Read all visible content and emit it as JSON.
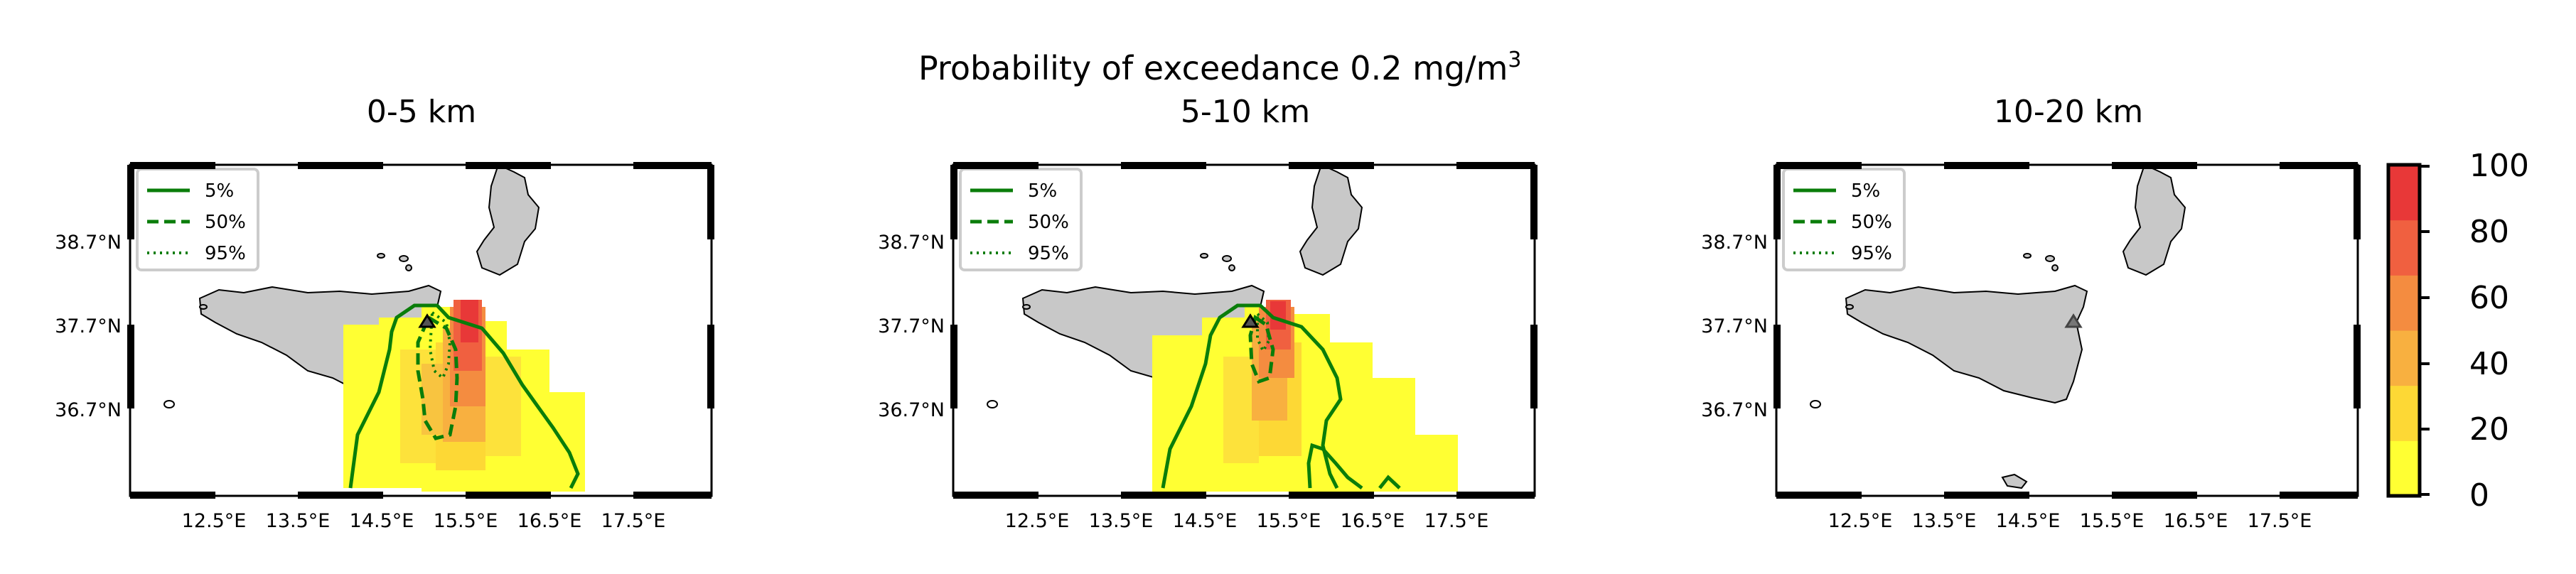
{
  "figure": {
    "suptitle": "Probability of exceedance 0.2 mg/m",
    "suptitle_sup": "3"
  },
  "chart_data": [
    {
      "type": "heatmap",
      "title": "0-5 km",
      "x_ticks": [
        "12.5°E",
        "13.5°E",
        "14.5°E",
        "15.5°E",
        "16.5°E",
        "17.5°E"
      ],
      "y_ticks": [
        "38.7°N",
        "37.7°N",
        "36.7°N"
      ],
      "lon_range": [
        11.5,
        18.5
      ],
      "lat_range": [
        35.6,
        39.6
      ],
      "legend": {
        "items": [
          "5%",
          "50%",
          "95%"
        ],
        "placement": "top-left"
      },
      "vent": {
        "lon": 15.0,
        "lat": 37.75
      }
    },
    {
      "type": "heatmap",
      "title": "5-10 km",
      "x_ticks": [
        "12.5°E",
        "13.5°E",
        "14.5°E",
        "15.5°E",
        "16.5°E",
        "17.5°E"
      ],
      "y_ticks": [
        "38.7°N",
        "37.7°N",
        "36.7°N"
      ],
      "lon_range": [
        11.5,
        18.5
      ],
      "lat_range": [
        35.6,
        39.6
      ],
      "legend": {
        "items": [
          "5%",
          "50%",
          "95%"
        ],
        "placement": "top-left"
      },
      "vent": {
        "lon": 15.0,
        "lat": 37.75
      }
    },
    {
      "type": "heatmap",
      "title": "10-20 km",
      "x_ticks": [
        "12.5°E",
        "13.5°E",
        "14.5°E",
        "15.5°E",
        "16.5°E",
        "17.5°E"
      ],
      "y_ticks": [
        "38.7°N",
        "37.7°N",
        "36.7°N"
      ],
      "lon_range": [
        11.5,
        18.5
      ],
      "lat_range": [
        35.6,
        39.6
      ],
      "legend": {
        "items": [
          "5%",
          "50%",
          "95%"
        ],
        "placement": "top-left"
      },
      "vent": {
        "lon": 15.0,
        "lat": 37.75
      }
    }
  ],
  "colorbar": {
    "ticks": [
      "100",
      "80",
      "60",
      "40",
      "20",
      "0"
    ],
    "range": [
      0,
      100
    ],
    "colors": [
      "#ffff33",
      "#fdd835",
      "#f8b040",
      "#f48c40",
      "#f06040",
      "#e83838"
    ]
  }
}
